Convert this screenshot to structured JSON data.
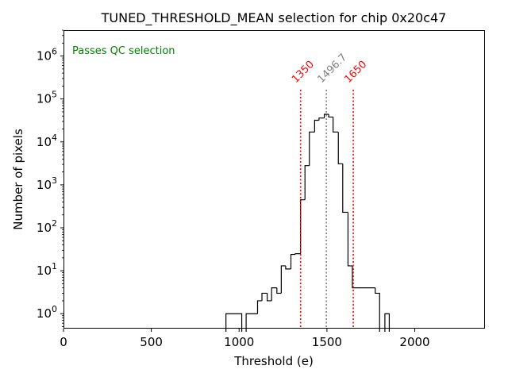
{
  "chart_data": {
    "type": "histogram",
    "title": "TUNED_THRESHOLD_MEAN selection for chip 0x20c47",
    "xlabel": "Threshold (e)",
    "ylabel": "Number of pixels",
    "xlim": [
      0,
      2400
    ],
    "ylim": [
      0.45,
      4000000
    ],
    "yscale": "log",
    "x_ticks": [
      {
        "value": 0,
        "label": "0"
      },
      {
        "value": 500,
        "label": "500"
      },
      {
        "value": 1000,
        "label": "1000"
      },
      {
        "value": 1500,
        "label": "1500"
      },
      {
        "value": 2000,
        "label": "2000"
      }
    ],
    "y_ticks": [
      {
        "value": 1,
        "base": "10",
        "exp": "0"
      },
      {
        "value": 10,
        "base": "10",
        "exp": "1"
      },
      {
        "value": 100,
        "base": "10",
        "exp": "2"
      },
      {
        "value": 1000,
        "base": "10",
        "exp": "3"
      },
      {
        "value": 10000,
        "base": "10",
        "exp": "4"
      },
      {
        "value": 100000,
        "base": "10",
        "exp": "5"
      },
      {
        "value": 1000000,
        "base": "10",
        "exp": "6"
      }
    ],
    "histogram": {
      "bins": [
        {
          "x0": 925,
          "x1": 1015,
          "count": 1
        },
        {
          "x0": 1015,
          "x1": 1040,
          "count": 0
        },
        {
          "x0": 1040,
          "x1": 1105,
          "count": 1
        },
        {
          "x0": 1105,
          "x1": 1130,
          "count": 2
        },
        {
          "x0": 1130,
          "x1": 1160,
          "count": 3
        },
        {
          "x0": 1160,
          "x1": 1185,
          "count": 2
        },
        {
          "x0": 1185,
          "x1": 1215,
          "count": 4
        },
        {
          "x0": 1215,
          "x1": 1240,
          "count": 3
        },
        {
          "x0": 1240,
          "x1": 1265,
          "count": 13
        },
        {
          "x0": 1265,
          "x1": 1295,
          "count": 11
        },
        {
          "x0": 1295,
          "x1": 1320,
          "count": 24
        },
        {
          "x0": 1320,
          "x1": 1350,
          "count": 25
        },
        {
          "x0": 1350,
          "x1": 1375,
          "count": 450
        },
        {
          "x0": 1375,
          "x1": 1400,
          "count": 2800
        },
        {
          "x0": 1400,
          "x1": 1430,
          "count": 17000
        },
        {
          "x0": 1430,
          "x1": 1455,
          "count": 32000
        },
        {
          "x0": 1455,
          "x1": 1485,
          "count": 36000
        },
        {
          "x0": 1485,
          "x1": 1510,
          "count": 44000
        },
        {
          "x0": 1510,
          "x1": 1535,
          "count": 38000
        },
        {
          "x0": 1535,
          "x1": 1565,
          "count": 17000
        },
        {
          "x0": 1565,
          "x1": 1590,
          "count": 3100
        },
        {
          "x0": 1590,
          "x1": 1620,
          "count": 230
        },
        {
          "x0": 1620,
          "x1": 1645,
          "count": 13
        },
        {
          "x0": 1645,
          "x1": 1675,
          "count": 4
        },
        {
          "x0": 1675,
          "x1": 1775,
          "count": 4
        },
        {
          "x0": 1775,
          "x1": 1800,
          "count": 3
        },
        {
          "x0": 1800,
          "x1": 1830,
          "count": 0
        },
        {
          "x0": 1830,
          "x1": 1855,
          "count": 1
        }
      ]
    },
    "vlines": [
      {
        "x": 1350,
        "label": "1350",
        "color": "#ff0000"
      },
      {
        "x": 1496.7,
        "label": "1496.7",
        "color": "#808080"
      },
      {
        "x": 1650,
        "label": "1650",
        "color": "#ff0000"
      }
    ],
    "annotation": {
      "text": "Passes QC selection",
      "color": "#008000"
    },
    "colors": {
      "hist": "#000000",
      "axes": "#000000"
    }
  }
}
